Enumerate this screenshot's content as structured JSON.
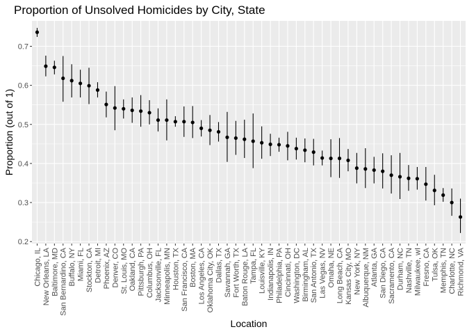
{
  "chart_data": {
    "type": "scatter",
    "title": "Proportion of Unsolved Homicides by City, State",
    "xlabel": "Location",
    "ylabel": "Proportion (out of 1)",
    "ylim": [
      0.195,
      0.765
    ],
    "yticks": [
      "0.2",
      "0.3",
      "0.4",
      "0.5",
      "0.6",
      "0.7"
    ],
    "grid": true,
    "panel_background": "#ebebeb",
    "categories": [
      "Chicago, IL",
      "New Orleans, LA",
      "Baltimore, MD",
      "San Bernardino, CA",
      "Buffalo, NY",
      "Miami, FL",
      "Stockton, CA",
      "Detroit, MI",
      "Phoenix, AZ",
      "Denver, CO",
      "St. Louis, MO",
      "Oakland, CA",
      "Pittsburgh, PA",
      "Columbus, OH",
      "Jacksonville, FL",
      "Minneapolis, MN",
      "Houston, TX",
      "San Francisco, CA",
      "Boston, MA",
      "Los Angeles, CA",
      "Oklahoma City, OK",
      "Dallas, TX",
      "Savannah, GA",
      "Fort Worth, TX",
      "Baton Rouge, LA",
      "Tampa, FL",
      "Louisville, KY",
      "Indianapolis, IN",
      "Philadelphia, PA",
      "Cincinnati, OH",
      "Washington, DC",
      "Birmingham, AL",
      "San Antonio, TX",
      "Las Vegas, NV",
      "Omaha, NE",
      "Long Beach, CA",
      "Kansas City, MO",
      "New York, NY",
      "Albuquerque, NM",
      "Atlanta, GA",
      "San Diego, CA",
      "Sacramento, CA",
      "Durham, NC",
      "Nashville, TN",
      "Milwaukee, wI",
      "Fresno, CA",
      "Tulsa, OK",
      "Memphis, TN",
      "Charlotte, NC",
      "Richmond, VA"
    ],
    "series": [
      {
        "values": [
          0.736,
          0.649,
          0.646,
          0.618,
          0.612,
          0.605,
          0.599,
          0.588,
          0.551,
          0.542,
          0.54,
          0.536,
          0.534,
          0.53,
          0.511,
          0.511,
          0.507,
          0.507,
          0.505,
          0.49,
          0.485,
          0.481,
          0.467,
          0.465,
          0.462,
          0.457,
          0.453,
          0.449,
          0.448,
          0.445,
          0.438,
          0.434,
          0.429,
          0.414,
          0.413,
          0.413,
          0.408,
          0.388,
          0.386,
          0.383,
          0.38,
          0.37,
          0.366,
          0.362,
          0.361,
          0.347,
          0.331,
          0.319,
          0.3,
          0.263
        ],
        "lower": [
          0.724,
          0.623,
          0.628,
          0.558,
          0.569,
          0.569,
          0.552,
          0.569,
          0.518,
          0.485,
          0.515,
          0.504,
          0.494,
          0.5,
          0.482,
          0.459,
          0.494,
          0.468,
          0.465,
          0.469,
          0.447,
          0.456,
          0.404,
          0.422,
          0.414,
          0.388,
          0.412,
          0.419,
          0.43,
          0.408,
          0.41,
          0.403,
          0.395,
          0.395,
          0.365,
          0.363,
          0.38,
          0.349,
          0.337,
          0.349,
          0.336,
          0.323,
          0.309,
          0.33,
          0.333,
          0.305,
          0.293,
          0.302,
          0.266,
          0.222
        ],
        "upper": [
          0.747,
          0.676,
          0.663,
          0.675,
          0.654,
          0.64,
          0.645,
          0.608,
          0.584,
          0.598,
          0.564,
          0.569,
          0.575,
          0.562,
          0.541,
          0.564,
          0.521,
          0.546,
          0.547,
          0.511,
          0.524,
          0.506,
          0.532,
          0.509,
          0.512,
          0.528,
          0.495,
          0.476,
          0.466,
          0.481,
          0.466,
          0.464,
          0.463,
          0.433,
          0.462,
          0.465,
          0.437,
          0.427,
          0.439,
          0.417,
          0.426,
          0.421,
          0.427,
          0.396,
          0.391,
          0.391,
          0.371,
          0.337,
          0.336,
          0.31
        ]
      }
    ]
  }
}
